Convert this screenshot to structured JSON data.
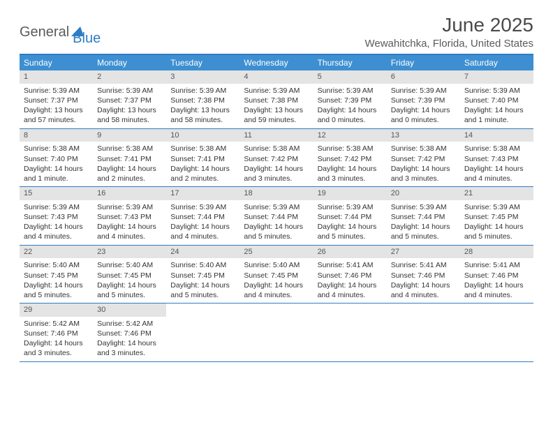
{
  "logo": {
    "part1": "General",
    "part2": "Blue"
  },
  "title": "June 2025",
  "location": "Wewahitchka, Florida, United States",
  "weekdays": [
    "Sunday",
    "Monday",
    "Tuesday",
    "Wednesday",
    "Thursday",
    "Friday",
    "Saturday"
  ],
  "colors": {
    "header_bar": "#3d8fd1",
    "border": "#2e7cc4",
    "daynum_bg": "#e4e4e4",
    "logo_gray": "#5a5a5a",
    "logo_blue": "#2e7cc4"
  },
  "weeks": [
    [
      {
        "n": "1",
        "sr": "Sunrise: 5:39 AM",
        "ss": "Sunset: 7:37 PM",
        "dl": "Daylight: 13 hours and 57 minutes."
      },
      {
        "n": "2",
        "sr": "Sunrise: 5:39 AM",
        "ss": "Sunset: 7:37 PM",
        "dl": "Daylight: 13 hours and 58 minutes."
      },
      {
        "n": "3",
        "sr": "Sunrise: 5:39 AM",
        "ss": "Sunset: 7:38 PM",
        "dl": "Daylight: 13 hours and 58 minutes."
      },
      {
        "n": "4",
        "sr": "Sunrise: 5:39 AM",
        "ss": "Sunset: 7:38 PM",
        "dl": "Daylight: 13 hours and 59 minutes."
      },
      {
        "n": "5",
        "sr": "Sunrise: 5:39 AM",
        "ss": "Sunset: 7:39 PM",
        "dl": "Daylight: 14 hours and 0 minutes."
      },
      {
        "n": "6",
        "sr": "Sunrise: 5:39 AM",
        "ss": "Sunset: 7:39 PM",
        "dl": "Daylight: 14 hours and 0 minutes."
      },
      {
        "n": "7",
        "sr": "Sunrise: 5:39 AM",
        "ss": "Sunset: 7:40 PM",
        "dl": "Daylight: 14 hours and 1 minute."
      }
    ],
    [
      {
        "n": "8",
        "sr": "Sunrise: 5:38 AM",
        "ss": "Sunset: 7:40 PM",
        "dl": "Daylight: 14 hours and 1 minute."
      },
      {
        "n": "9",
        "sr": "Sunrise: 5:38 AM",
        "ss": "Sunset: 7:41 PM",
        "dl": "Daylight: 14 hours and 2 minutes."
      },
      {
        "n": "10",
        "sr": "Sunrise: 5:38 AM",
        "ss": "Sunset: 7:41 PM",
        "dl": "Daylight: 14 hours and 2 minutes."
      },
      {
        "n": "11",
        "sr": "Sunrise: 5:38 AM",
        "ss": "Sunset: 7:42 PM",
        "dl": "Daylight: 14 hours and 3 minutes."
      },
      {
        "n": "12",
        "sr": "Sunrise: 5:38 AM",
        "ss": "Sunset: 7:42 PM",
        "dl": "Daylight: 14 hours and 3 minutes."
      },
      {
        "n": "13",
        "sr": "Sunrise: 5:38 AM",
        "ss": "Sunset: 7:42 PM",
        "dl": "Daylight: 14 hours and 3 minutes."
      },
      {
        "n": "14",
        "sr": "Sunrise: 5:38 AM",
        "ss": "Sunset: 7:43 PM",
        "dl": "Daylight: 14 hours and 4 minutes."
      }
    ],
    [
      {
        "n": "15",
        "sr": "Sunrise: 5:39 AM",
        "ss": "Sunset: 7:43 PM",
        "dl": "Daylight: 14 hours and 4 minutes."
      },
      {
        "n": "16",
        "sr": "Sunrise: 5:39 AM",
        "ss": "Sunset: 7:43 PM",
        "dl": "Daylight: 14 hours and 4 minutes."
      },
      {
        "n": "17",
        "sr": "Sunrise: 5:39 AM",
        "ss": "Sunset: 7:44 PM",
        "dl": "Daylight: 14 hours and 4 minutes."
      },
      {
        "n": "18",
        "sr": "Sunrise: 5:39 AM",
        "ss": "Sunset: 7:44 PM",
        "dl": "Daylight: 14 hours and 5 minutes."
      },
      {
        "n": "19",
        "sr": "Sunrise: 5:39 AM",
        "ss": "Sunset: 7:44 PM",
        "dl": "Daylight: 14 hours and 5 minutes."
      },
      {
        "n": "20",
        "sr": "Sunrise: 5:39 AM",
        "ss": "Sunset: 7:44 PM",
        "dl": "Daylight: 14 hours and 5 minutes."
      },
      {
        "n": "21",
        "sr": "Sunrise: 5:39 AM",
        "ss": "Sunset: 7:45 PM",
        "dl": "Daylight: 14 hours and 5 minutes."
      }
    ],
    [
      {
        "n": "22",
        "sr": "Sunrise: 5:40 AM",
        "ss": "Sunset: 7:45 PM",
        "dl": "Daylight: 14 hours and 5 minutes."
      },
      {
        "n": "23",
        "sr": "Sunrise: 5:40 AM",
        "ss": "Sunset: 7:45 PM",
        "dl": "Daylight: 14 hours and 5 minutes."
      },
      {
        "n": "24",
        "sr": "Sunrise: 5:40 AM",
        "ss": "Sunset: 7:45 PM",
        "dl": "Daylight: 14 hours and 5 minutes."
      },
      {
        "n": "25",
        "sr": "Sunrise: 5:40 AM",
        "ss": "Sunset: 7:45 PM",
        "dl": "Daylight: 14 hours and 4 minutes."
      },
      {
        "n": "26",
        "sr": "Sunrise: 5:41 AM",
        "ss": "Sunset: 7:46 PM",
        "dl": "Daylight: 14 hours and 4 minutes."
      },
      {
        "n": "27",
        "sr": "Sunrise: 5:41 AM",
        "ss": "Sunset: 7:46 PM",
        "dl": "Daylight: 14 hours and 4 minutes."
      },
      {
        "n": "28",
        "sr": "Sunrise: 5:41 AM",
        "ss": "Sunset: 7:46 PM",
        "dl": "Daylight: 14 hours and 4 minutes."
      }
    ],
    [
      {
        "n": "29",
        "sr": "Sunrise: 5:42 AM",
        "ss": "Sunset: 7:46 PM",
        "dl": "Daylight: 14 hours and 3 minutes."
      },
      {
        "n": "30",
        "sr": "Sunrise: 5:42 AM",
        "ss": "Sunset: 7:46 PM",
        "dl": "Daylight: 14 hours and 3 minutes."
      },
      {
        "n": "",
        "sr": "",
        "ss": "",
        "dl": ""
      },
      {
        "n": "",
        "sr": "",
        "ss": "",
        "dl": ""
      },
      {
        "n": "",
        "sr": "",
        "ss": "",
        "dl": ""
      },
      {
        "n": "",
        "sr": "",
        "ss": "",
        "dl": ""
      },
      {
        "n": "",
        "sr": "",
        "ss": "",
        "dl": ""
      }
    ]
  ]
}
